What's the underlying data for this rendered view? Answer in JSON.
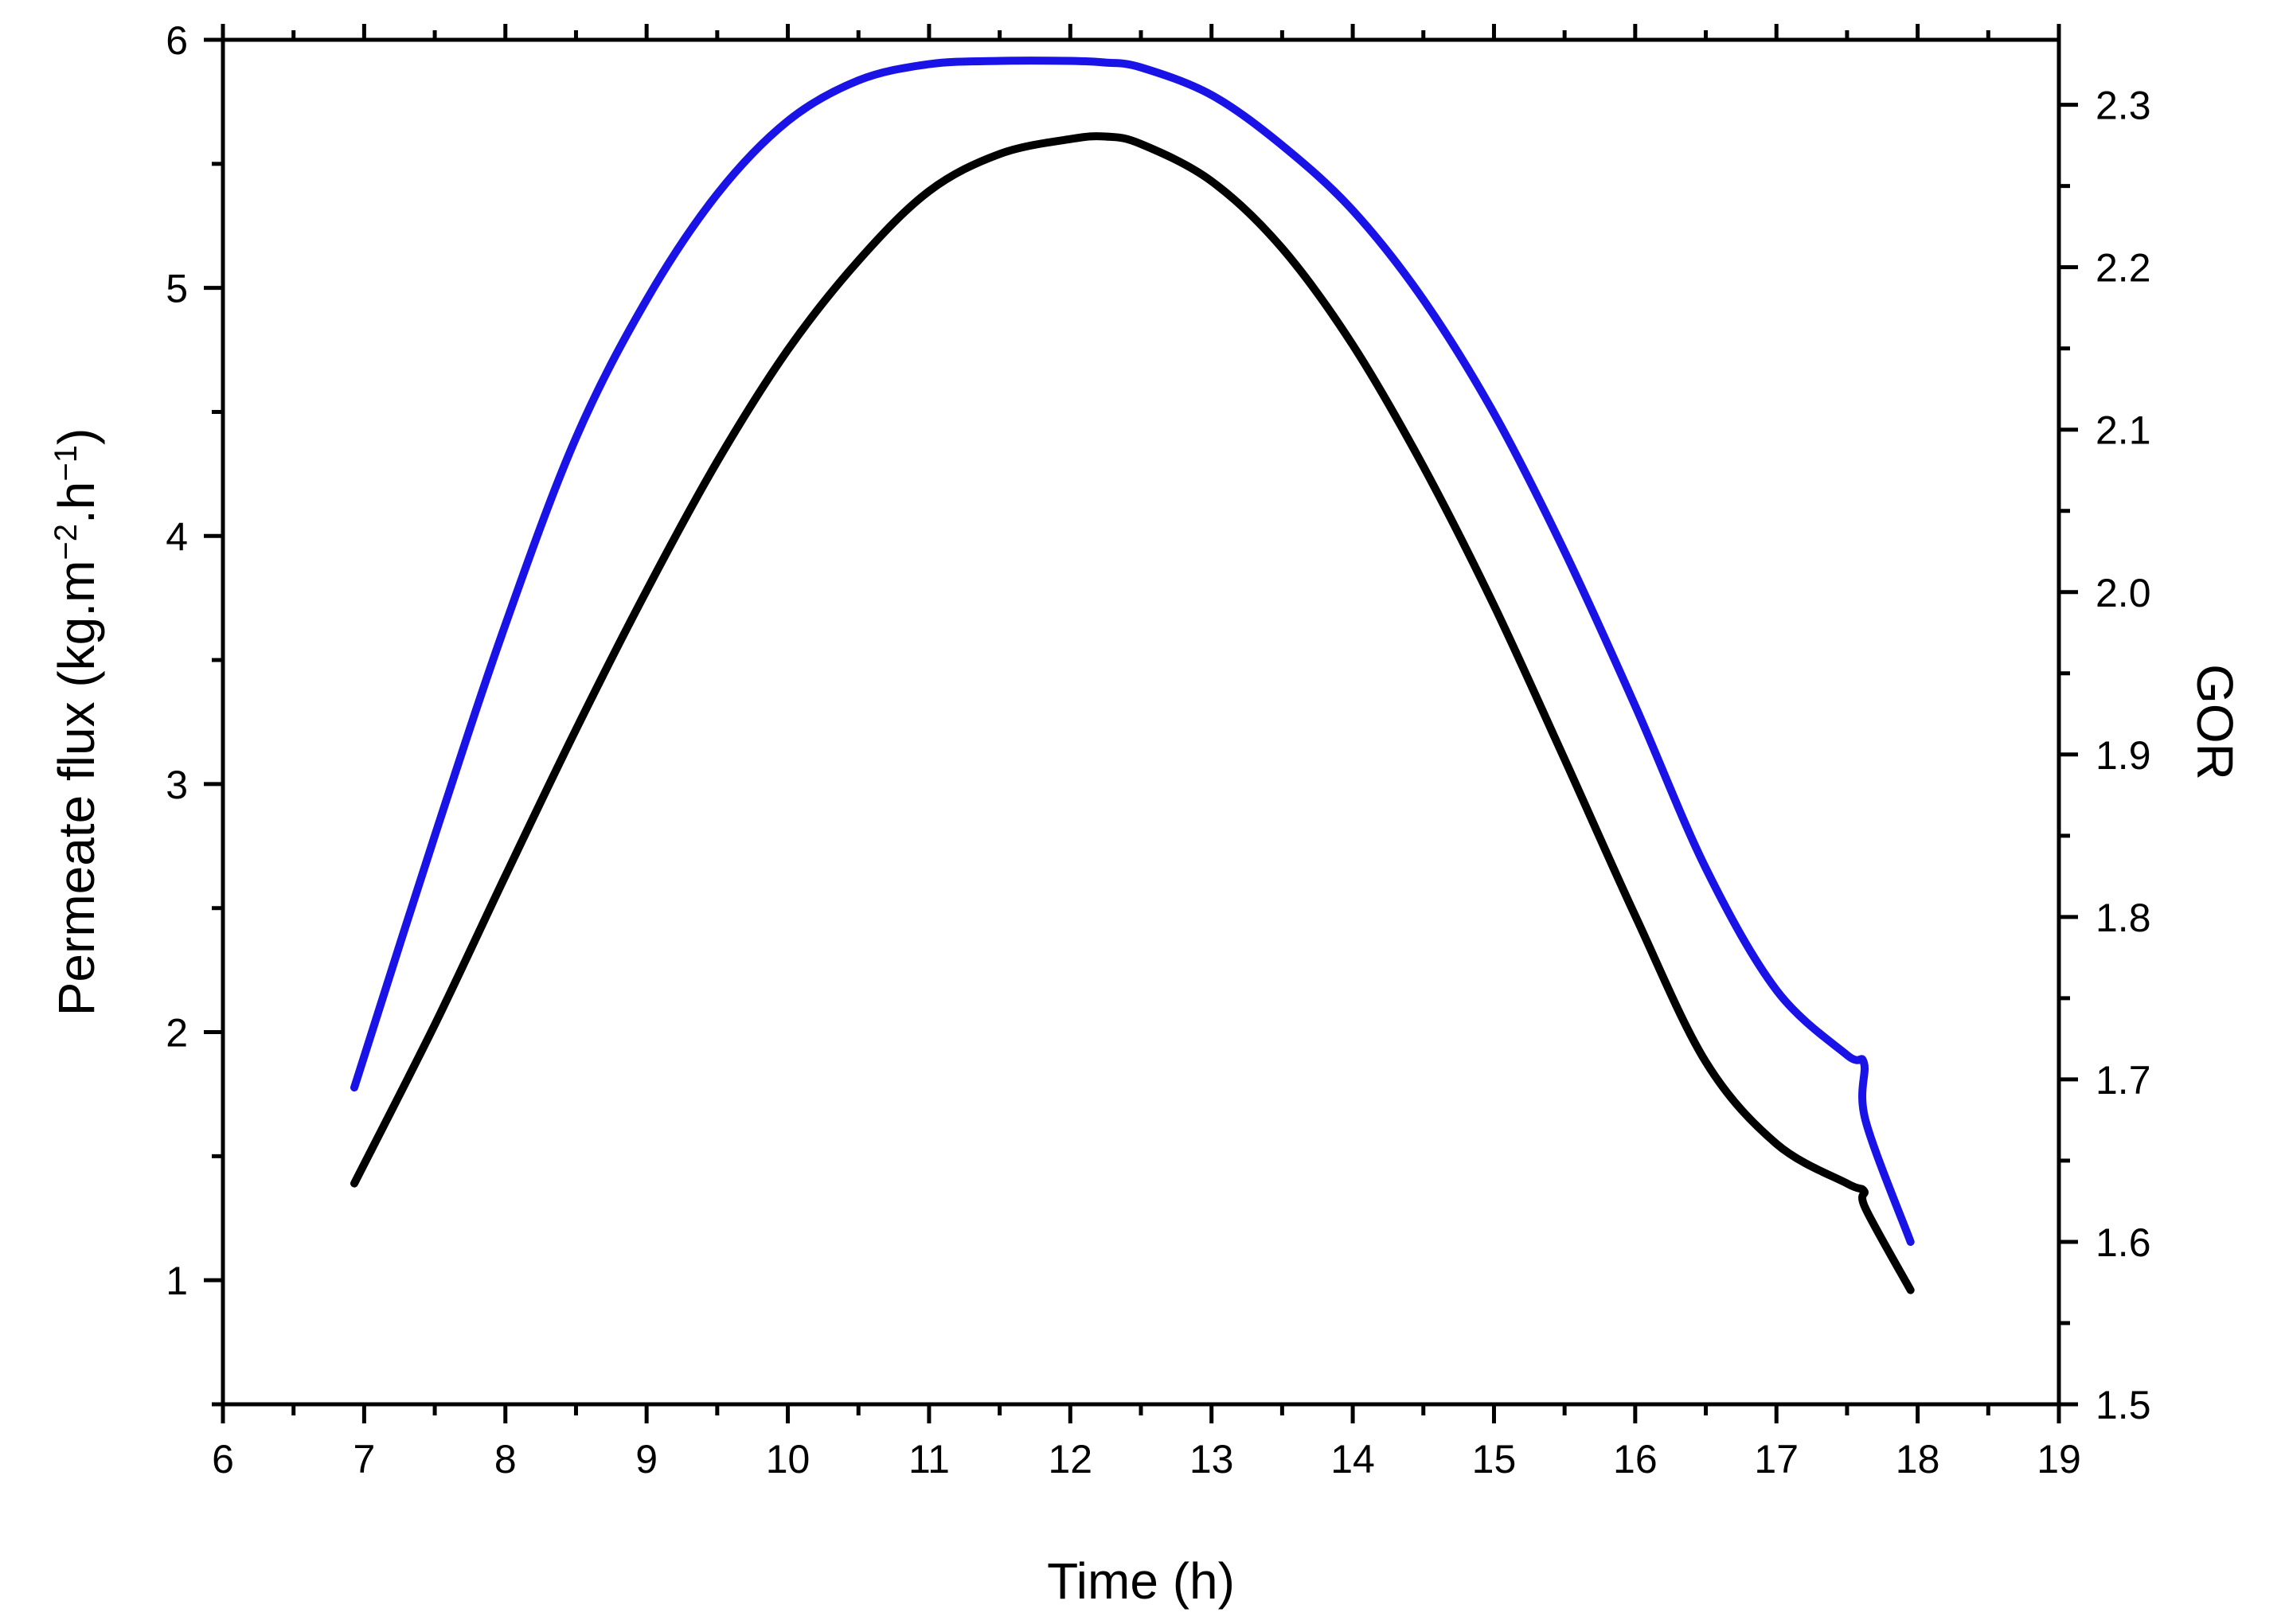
{
  "chart_data": {
    "type": "line",
    "xlabel": "Time (h)",
    "ylabel_left": {
      "main": "Permeate flux (kg.m",
      "sup1": "−2",
      "mid": ".h",
      "sup2": "−1",
      "end": ")"
    },
    "ylabel_right": "GOR",
    "xlim": [
      6,
      19
    ],
    "ylim_left": [
      0.5,
      6
    ],
    "ylim_right": [
      1.5,
      2.34
    ],
    "x_ticks": [
      "6",
      "7",
      "8",
      "9",
      "10",
      "11",
      "12",
      "13",
      "14",
      "15",
      "16",
      "17",
      "18",
      "19"
    ],
    "y_ticks_left": [
      "1",
      "2",
      "3",
      "4",
      "5",
      "6"
    ],
    "y_ticks_right": [
      "1.5",
      "1.6",
      "1.7",
      "1.8",
      "1.9",
      "2.0",
      "2.1",
      "2.2",
      "2.3"
    ],
    "grid": false,
    "series": [
      {
        "axis": "left",
        "color": "#000000",
        "x": [
          6.93,
          7.5,
          8.0,
          8.5,
          9.0,
          9.5,
          10.0,
          10.5,
          11.0,
          11.5,
          12.0,
          12.25,
          12.5,
          13.0,
          13.5,
          14.0,
          14.5,
          15.0,
          15.5,
          16.0,
          16.5,
          17.0,
          17.5,
          17.62,
          17.63,
          17.95
        ],
        "values": [
          1.39,
          2.03,
          2.63,
          3.22,
          3.78,
          4.3,
          4.75,
          5.11,
          5.39,
          5.54,
          5.6,
          5.61,
          5.58,
          5.43,
          5.16,
          4.77,
          4.28,
          3.72,
          3.1,
          2.47,
          1.88,
          1.55,
          1.39,
          1.36,
          1.29,
          0.96
        ]
      },
      {
        "axis": "right",
        "color": "#1a13e8",
        "x": [
          6.93,
          7.5,
          8.0,
          8.5,
          9.0,
          9.5,
          10.0,
          10.5,
          11.0,
          11.5,
          12.0,
          12.25,
          12.5,
          13.0,
          13.5,
          14.0,
          14.5,
          15.0,
          15.5,
          16.0,
          16.5,
          17.0,
          17.5,
          17.62,
          17.63,
          17.95
        ],
        "values": [
          1.695,
          1.85,
          1.98,
          2.095,
          2.18,
          2.245,
          2.29,
          2.315,
          2.325,
          2.327,
          2.327,
          2.326,
          2.323,
          2.306,
          2.275,
          2.235,
          2.18,
          2.11,
          2.025,
          1.93,
          1.83,
          1.755,
          1.715,
          1.71,
          1.675,
          1.6
        ]
      }
    ]
  }
}
